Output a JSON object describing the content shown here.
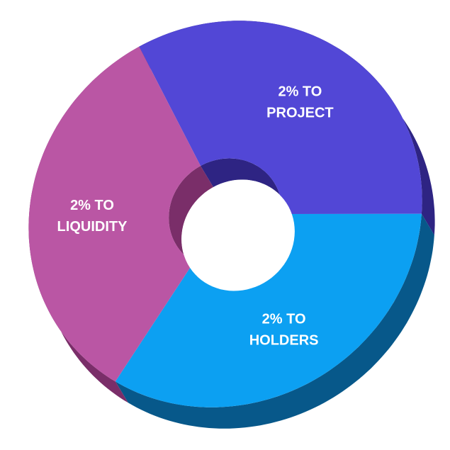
{
  "chart_data": {
    "type": "pie",
    "style": "3d-donut",
    "title": "",
    "legend": "none",
    "slices": [
      {
        "label_lines": [
          "2% TO",
          "PROJECT"
        ],
        "value": 2,
        "color": "#5247d6",
        "side_color": "#2e2483"
      },
      {
        "label_lines": [
          "2% TO",
          "HOLDERS"
        ],
        "value": 2,
        "color": "#0ca0f2",
        "side_color": "#07588a"
      },
      {
        "label_lines": [
          "2% TO",
          "LIQUIDITY"
        ],
        "value": 2,
        "color": "#ba56a4",
        "side_color": "#7a2e69"
      }
    ]
  }
}
